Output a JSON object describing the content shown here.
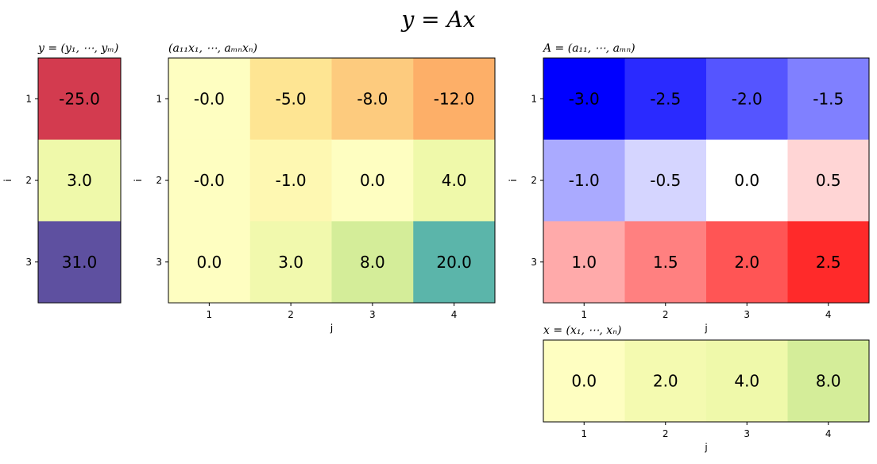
{
  "figure": {
    "suptitle": "y = Ax"
  },
  "chart_data": [
    {
      "id": "y",
      "type": "heatmap",
      "title": "y = (y₁, ⋯, yₘ)",
      "xlabel": "",
      "ylabel": "i",
      "row_ticks": [
        "1",
        "2",
        "3"
      ],
      "col_ticks": [],
      "colormap": "Spectral (reversed)",
      "values": [
        [
          -25.0
        ],
        [
          3.0
        ],
        [
          31.0
        ]
      ],
      "labels": [
        [
          "-25.0"
        ],
        [
          "3.0"
        ],
        [
          "31.0"
        ]
      ],
      "colors": [
        [
          "#d33b4f"
        ],
        [
          "#eff9aa"
        ],
        [
          "#5e50a0"
        ]
      ]
    },
    {
      "id": "ax",
      "type": "heatmap",
      "title": "(a₁₁x₁, ⋯, aₘₙxₙ)",
      "xlabel": "j",
      "ylabel": "i",
      "row_ticks": [
        "1",
        "2",
        "3"
      ],
      "col_ticks": [
        "1",
        "2",
        "3",
        "4"
      ],
      "colormap": "Spectral (reversed)",
      "values": [
        [
          -0.0,
          -5.0,
          -8.0,
          -12.0
        ],
        [
          -0.0,
          -1.0,
          0.0,
          4.0
        ],
        [
          0.0,
          3.0,
          8.0,
          20.0
        ]
      ],
      "labels": [
        [
          "-0.0",
          "-5.0",
          "-8.0",
          "-12.0"
        ],
        [
          "-0.0",
          "-1.0",
          "0.0",
          "4.0"
        ],
        [
          "0.0",
          "3.0",
          "8.0",
          "20.0"
        ]
      ],
      "colors": [
        [
          "#fefec1",
          "#fee593",
          "#fdcb7e",
          "#fdaf68"
        ],
        [
          "#fefec1",
          "#fef8b2",
          "#fefec1",
          "#eff9aa"
        ],
        [
          "#fefec1",
          "#f1f9ad",
          "#d4ed99",
          "#5bb5aa"
        ]
      ]
    },
    {
      "id": "A",
      "type": "heatmap",
      "title": "A = (a₁₁, ⋯, aₘₙ)",
      "xlabel": "j",
      "ylabel": "i",
      "row_ticks": [
        "1",
        "2",
        "3"
      ],
      "col_ticks": [
        "1",
        "2",
        "3",
        "4"
      ],
      "colormap": "bwr",
      "values": [
        [
          -3.0,
          -2.5,
          -2.0,
          -1.5
        ],
        [
          -1.0,
          -0.5,
          0.0,
          0.5
        ],
        [
          1.0,
          1.5,
          2.0,
          2.5
        ]
      ],
      "labels": [
        [
          "-3.0",
          "-2.5",
          "-2.0",
          "-1.5"
        ],
        [
          "-1.0",
          "-0.5",
          "0.0",
          "0.5"
        ],
        [
          "1.0",
          "1.5",
          "2.0",
          "2.5"
        ]
      ],
      "colors": [
        [
          "#0000ff",
          "#2a2aff",
          "#5555ff",
          "#8080ff"
        ],
        [
          "#aaaaff",
          "#d5d5ff",
          "#ffffff",
          "#ffd5d5"
        ],
        [
          "#ffaaaa",
          "#ff8080",
          "#ff5555",
          "#ff2a2a"
        ]
      ]
    },
    {
      "id": "x",
      "type": "heatmap",
      "title": "x = (x₁, ⋯, xₙ)",
      "xlabel": "j",
      "ylabel": "",
      "row_ticks": [],
      "col_ticks": [
        "1",
        "2",
        "3",
        "4"
      ],
      "colormap": "Spectral (reversed)",
      "values": [
        [
          0.0,
          2.0,
          4.0,
          8.0
        ]
      ],
      "labels": [
        [
          "0.0",
          "2.0",
          "4.0",
          "8.0"
        ]
      ],
      "colors": [
        [
          "#fefec1",
          "#f4fab0",
          "#eff9aa",
          "#d4ed99"
        ]
      ]
    }
  ]
}
